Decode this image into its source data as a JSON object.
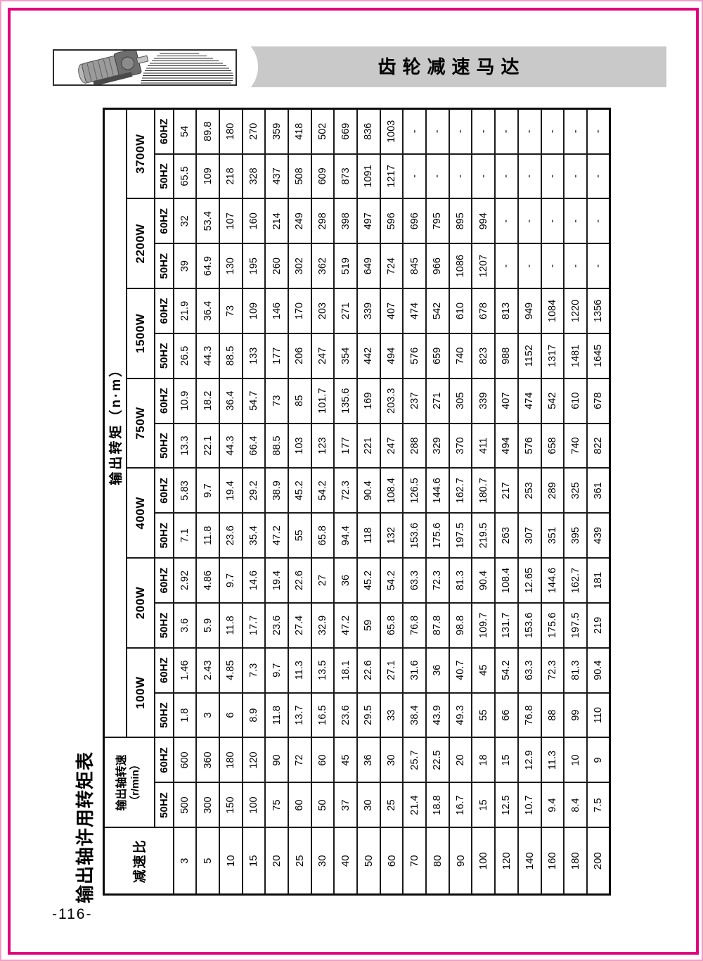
{
  "page": {
    "side_title": "输出轴许用转矩表",
    "number": "-116-"
  },
  "header": {
    "title": "齿轮减速马达",
    "logo_icon": "gear-motor-photo",
    "decoration_icon": "speed-lines"
  },
  "colors": {
    "frame_magenta": "#e2007d",
    "frame_light_pink": "#f29fc7",
    "title_bar_grey": "#c9c9c9"
  },
  "table": {
    "corner_header": "减速比",
    "speed_header": "输出轴转速",
    "speed_unit": "（r/min）",
    "torque_header": "输出转矩（n·m）",
    "freq_labels": [
      "50HZ",
      "60HZ"
    ],
    "wattages": [
      "100W",
      "200W",
      "400W",
      "750W",
      "1500W",
      "2200W",
      "3700W"
    ],
    "columns": [
      "减速比",
      "转速 50HZ",
      "转速 60HZ",
      "100W 50HZ",
      "100W 60HZ",
      "200W 50HZ",
      "200W 60HZ",
      "400W 50HZ",
      "400W 60HZ",
      "750W 50HZ",
      "750W 60HZ",
      "1500W 50HZ",
      "1500W 60HZ",
      "2200W 50HZ",
      "2200W 60HZ",
      "3700W 50HZ",
      "3700W 60HZ"
    ],
    "rows": [
      [
        "3",
        "500",
        "600",
        "1.8",
        "1.46",
        "3.6",
        "2.92",
        "7.1",
        "5.83",
        "13.3",
        "10.9",
        "26.5",
        "21.9",
        "39",
        "32",
        "65.5",
        "54"
      ],
      [
        "5",
        "300",
        "360",
        "3",
        "2.43",
        "5.9",
        "4.86",
        "11.8",
        "9.7",
        "22.1",
        "18.2",
        "44.3",
        "36.4",
        "64.9",
        "53.4",
        "109",
        "89.8"
      ],
      [
        "10",
        "150",
        "180",
        "6",
        "4.85",
        "11.8",
        "9.7",
        "23.6",
        "19.4",
        "44.3",
        "36.4",
        "88.5",
        "73",
        "130",
        "107",
        "218",
        "180"
      ],
      [
        "15",
        "100",
        "120",
        "8.9",
        "7.3",
        "17.7",
        "14.6",
        "35.4",
        "29.2",
        "66.4",
        "54.7",
        "133",
        "109",
        "195",
        "160",
        "328",
        "270"
      ],
      [
        "20",
        "75",
        "90",
        "11.8",
        "9.7",
        "23.6",
        "19.4",
        "47.2",
        "38.9",
        "88.5",
        "73",
        "177",
        "146",
        "260",
        "214",
        "437",
        "359"
      ],
      [
        "25",
        "60",
        "72",
        "13.7",
        "11.3",
        "27.4",
        "22.6",
        "55",
        "45.2",
        "103",
        "85",
        "206",
        "170",
        "302",
        "249",
        "508",
        "418"
      ],
      [
        "30",
        "50",
        "60",
        "16.5",
        "13.5",
        "32.9",
        "27",
        "65.8",
        "54.2",
        "123",
        "101.7",
        "247",
        "203",
        "362",
        "298",
        "609",
        "502"
      ],
      [
        "40",
        "37",
        "45",
        "23.6",
        "18.1",
        "47.2",
        "36",
        "94.4",
        "72.3",
        "177",
        "135.6",
        "354",
        "271",
        "519",
        "398",
        "873",
        "669"
      ],
      [
        "50",
        "30",
        "36",
        "29.5",
        "22.6",
        "59",
        "45.2",
        "118",
        "90.4",
        "221",
        "169",
        "442",
        "339",
        "649",
        "497",
        "1091",
        "836"
      ],
      [
        "60",
        "25",
        "30",
        "33",
        "27.1",
        "65.8",
        "54.2",
        "132",
        "108.4",
        "247",
        "203.3",
        "494",
        "407",
        "724",
        "596",
        "1217",
        "1003"
      ],
      [
        "70",
        "21.4",
        "25.7",
        "38.4",
        "31.6",
        "76.8",
        "63.3",
        "153.6",
        "126.5",
        "288",
        "237",
        "576",
        "474",
        "845",
        "696",
        "-",
        "-"
      ],
      [
        "80",
        "18.8",
        "22.5",
        "43.9",
        "36",
        "87.8",
        "72.3",
        "175.6",
        "144.6",
        "329",
        "271",
        "659",
        "542",
        "966",
        "795",
        "-",
        "-"
      ],
      [
        "90",
        "16.7",
        "20",
        "49.3",
        "40.7",
        "98.8",
        "81.3",
        "197.5",
        "162.7",
        "370",
        "305",
        "740",
        "610",
        "1086",
        "895",
        "-",
        "-"
      ],
      [
        "100",
        "15",
        "18",
        "55",
        "45",
        "109.7",
        "90.4",
        "219.5",
        "180.7",
        "411",
        "339",
        "823",
        "678",
        "1207",
        "994",
        "-",
        "-"
      ],
      [
        "120",
        "12.5",
        "15",
        "66",
        "54.2",
        "131.7",
        "108.4",
        "263",
        "217",
        "494",
        "407",
        "988",
        "813",
        "-",
        "-",
        "-",
        "-"
      ],
      [
        "140",
        "10.7",
        "12.9",
        "76.8",
        "63.3",
        "153.6",
        "12.65",
        "307",
        "253",
        "576",
        "474",
        "1152",
        "949",
        "-",
        "-",
        "-",
        "-"
      ],
      [
        "160",
        "9.4",
        "11.3",
        "88",
        "72.3",
        "175.6",
        "144.6",
        "351",
        "289",
        "658",
        "542",
        "1317",
        "1084",
        "-",
        "-",
        "-",
        "-"
      ],
      [
        "180",
        "8.4",
        "10",
        "99",
        "81.3",
        "197.5",
        "162.7",
        "395",
        "325",
        "740",
        "610",
        "1481",
        "1220",
        "-",
        "-",
        "-",
        "-"
      ],
      [
        "200",
        "7.5",
        "9",
        "110",
        "90.4",
        "219",
        "181",
        "439",
        "361",
        "822",
        "678",
        "1645",
        "1356",
        "-",
        "-",
        "-",
        "-"
      ]
    ]
  }
}
